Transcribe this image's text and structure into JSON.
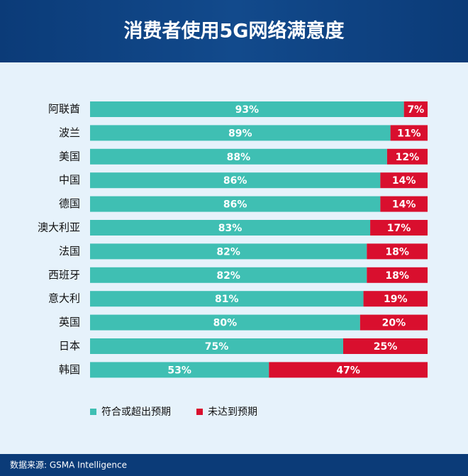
{
  "chart_data": {
    "type": "bar",
    "orientation": "horizontal",
    "stacked": true,
    "title": "消费者使用5G网络满意度",
    "categories": [
      "阿联酋",
      "波兰",
      "美国",
      "中国",
      "德国",
      "澳大利亚",
      "法国",
      "西班牙",
      "意大利",
      "英国",
      "日本",
      "韩国"
    ],
    "series": [
      {
        "name": "符合或超出预期",
        "color": "#3fbfb3",
        "values": [
          93,
          89,
          88,
          86,
          86,
          83,
          82,
          82,
          81,
          80,
          75,
          53
        ],
        "value_labels": [
          "93%",
          "89%",
          "88%",
          "86%",
          "86%",
          "83%",
          "82%",
          "82%",
          "81%",
          "80%",
          "75%",
          "53%"
        ]
      },
      {
        "name": "未达到预期",
        "color": "#d90f2e",
        "values": [
          7,
          11,
          12,
          14,
          14,
          17,
          18,
          18,
          19,
          20,
          25,
          47
        ],
        "value_labels": [
          "7%",
          "11%",
          "12%",
          "14%",
          "14%",
          "17%",
          "18%",
          "18%",
          "19%",
          "20%",
          "25%",
          "47%"
        ]
      }
    ],
    "legend": "bottom",
    "source": "数据来源: GSMA Intelligence"
  }
}
